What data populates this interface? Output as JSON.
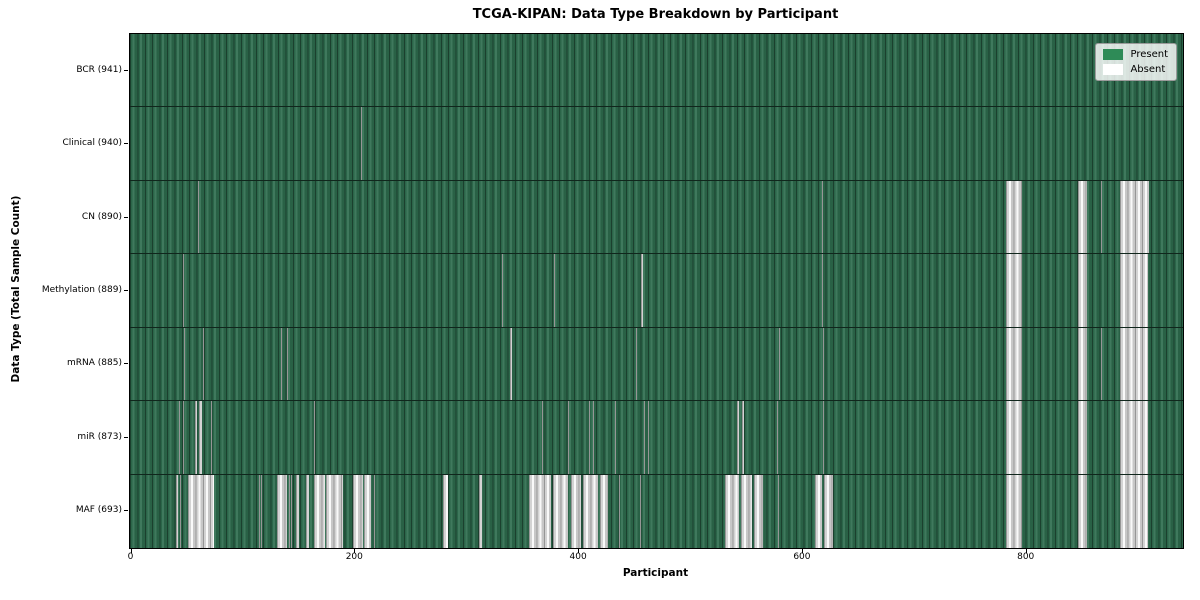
{
  "title": "TCGA-KIPAN: Data Type Breakdown by Participant",
  "colors": {
    "present": "#2e8b57",
    "absent": "#ffffff",
    "plot_border": "#000000",
    "figure_background": "#ffffff"
  },
  "chart_data": {
    "type": "heatmap",
    "title": "TCGA-KIPAN: Data Type Breakdown by Participant",
    "xlabel": "Participant",
    "ylabel": "Data Type (Total Sample Count)",
    "x_ticks": [
      0,
      200,
      400,
      600,
      800
    ],
    "x_range": [
      0,
      941
    ],
    "n_participants": 941,
    "legend_position": "upper right",
    "legend": [
      {
        "label": "Present",
        "color": "#2e8b57"
      },
      {
        "label": "Absent",
        "color": "#ffffff"
      }
    ],
    "value_encoding": "green cell = data type present for participant, white cell = absent",
    "rows": [
      {
        "name": "BCR",
        "label": "BCR (941)",
        "present_count": 941,
        "absent_count": 0,
        "absent_ranges": []
      },
      {
        "name": "Clinical",
        "label": "Clinical (940)",
        "present_count": 940,
        "absent_count": 1,
        "absent_ranges": [
          [
            206,
            207
          ]
        ]
      },
      {
        "name": "CN",
        "label": "CN (890)",
        "present_count": 890,
        "absent_count": 51,
        "absent_ranges": [
          [
            61,
            62
          ],
          [
            618,
            619
          ],
          [
            783,
            797
          ],
          [
            847,
            855
          ],
          [
            868,
            869
          ],
          [
            885,
            911
          ]
        ]
      },
      {
        "name": "Methylation",
        "label": "Methylation (889)",
        "present_count": 889,
        "absent_count": 52,
        "absent_ranges": [
          [
            47,
            48
          ],
          [
            332,
            333
          ],
          [
            379,
            380
          ],
          [
            457,
            458
          ],
          [
            618,
            619
          ],
          [
            783,
            797
          ],
          [
            847,
            855
          ],
          [
            885,
            910
          ]
        ]
      },
      {
        "name": "mRNA",
        "label": "mRNA (885)",
        "present_count": 885,
        "absent_count": 56,
        "absent_ranges": [
          [
            48,
            49
          ],
          [
            65,
            66
          ],
          [
            135,
            136
          ],
          [
            140,
            141
          ],
          [
            340,
            341
          ],
          [
            452,
            453
          ],
          [
            580,
            581
          ],
          [
            619,
            620
          ],
          [
            783,
            797
          ],
          [
            847,
            855
          ],
          [
            868,
            869
          ],
          [
            885,
            910
          ]
        ]
      },
      {
        "name": "miR",
        "label": "miR (873)",
        "present_count": 873,
        "absent_count": 68,
        "absent_ranges": [
          [
            44,
            45
          ],
          [
            47,
            48
          ],
          [
            58,
            60
          ],
          [
            62,
            64
          ],
          [
            72,
            73
          ],
          [
            164,
            165
          ],
          [
            368,
            369
          ],
          [
            391,
            392
          ],
          [
            410,
            411
          ],
          [
            414,
            415
          ],
          [
            433,
            434
          ],
          [
            459,
            460
          ],
          [
            463,
            464
          ],
          [
            542,
            544
          ],
          [
            547,
            549
          ],
          [
            578,
            579
          ],
          [
            619,
            620
          ],
          [
            783,
            797
          ],
          [
            847,
            855
          ],
          [
            885,
            910
          ]
        ]
      },
      {
        "name": "MAF",
        "label": "MAF (693)",
        "present_count": 693,
        "absent_count": 248,
        "absent_ranges": [
          [
            41,
            43
          ],
          [
            45,
            46
          ],
          [
            52,
            75
          ],
          [
            115,
            116
          ],
          [
            117,
            118
          ],
          [
            131,
            140
          ],
          [
            142,
            143
          ],
          [
            144,
            145
          ],
          [
            148,
            151
          ],
          [
            157,
            160
          ],
          [
            164,
            174
          ],
          [
            175,
            190
          ],
          [
            199,
            208
          ],
          [
            209,
            215
          ],
          [
            218,
            219
          ],
          [
            280,
            284
          ],
          [
            312,
            315
          ],
          [
            357,
            376
          ],
          [
            378,
            391
          ],
          [
            394,
            403
          ],
          [
            405,
            418
          ],
          [
            420,
            427
          ],
          [
            437,
            438
          ],
          [
            456,
            457
          ],
          [
            532,
            544
          ],
          [
            546,
            556
          ],
          [
            558,
            566
          ],
          [
            579,
            580
          ],
          [
            612,
            618
          ],
          [
            620,
            628
          ],
          [
            783,
            797
          ],
          [
            847,
            855
          ],
          [
            885,
            910
          ]
        ]
      }
    ]
  }
}
